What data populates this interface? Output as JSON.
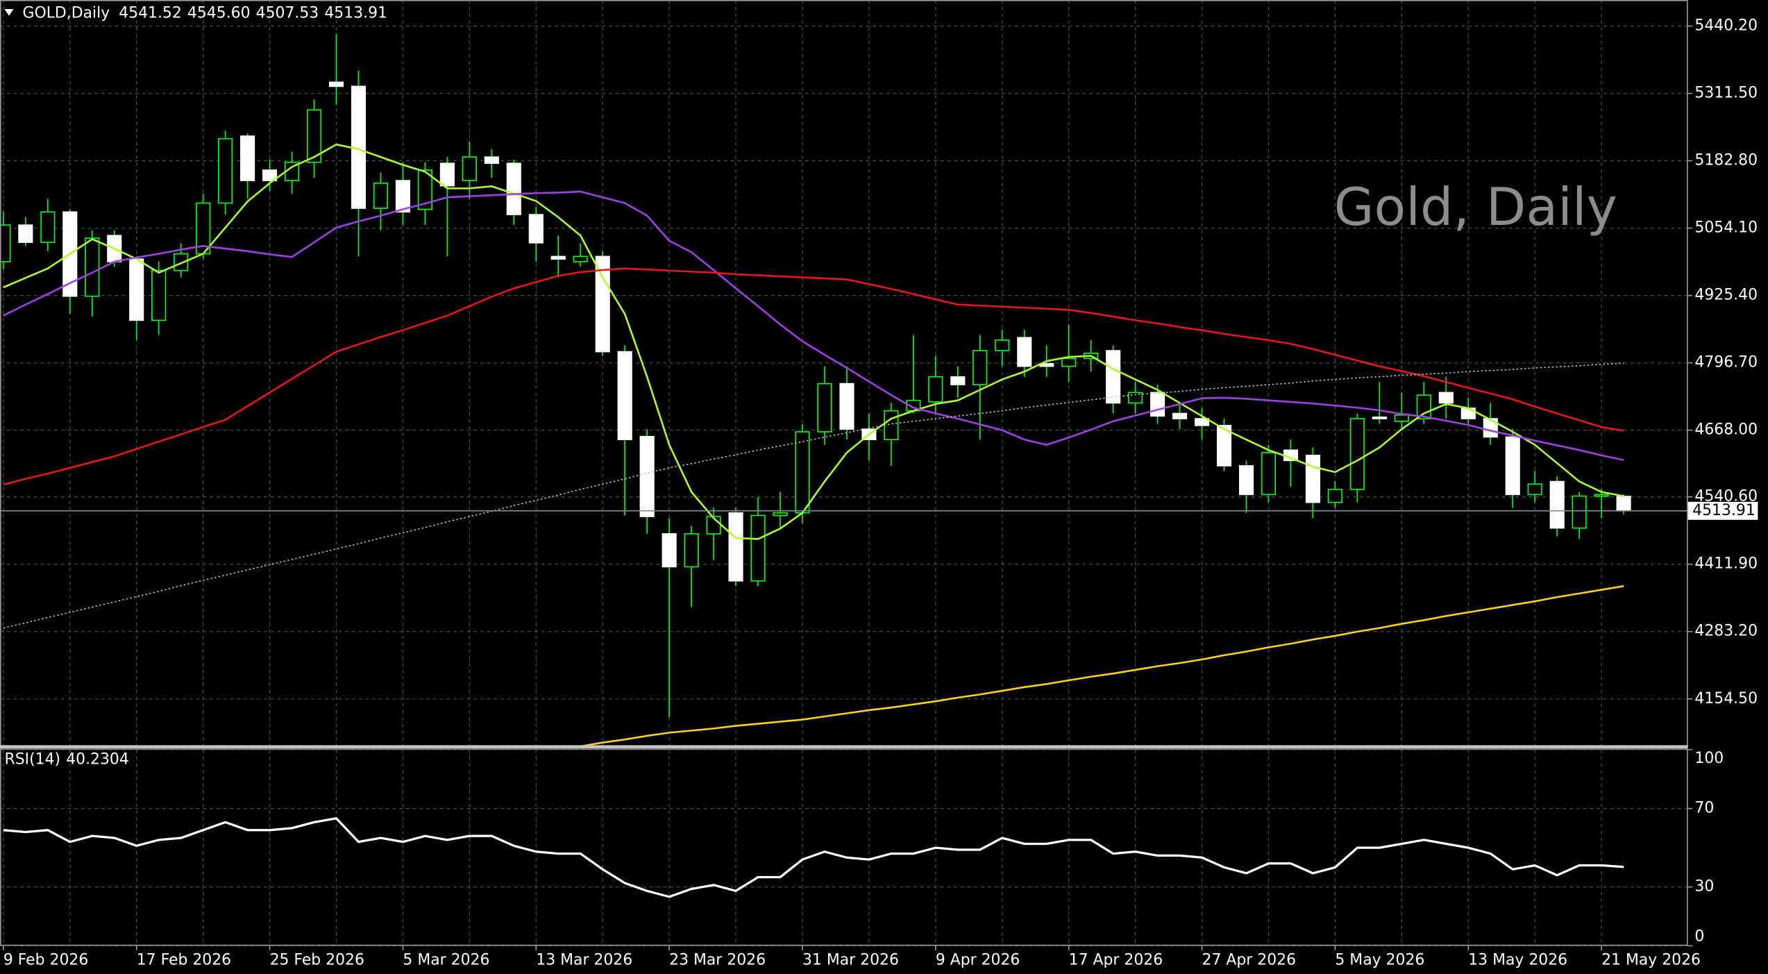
{
  "chart_data": [
    {
      "type": "candlestick",
      "title": "Gold, Daily",
      "header": {
        "symbol": "GOLD,Daily",
        "ohlc": [
          "4541.52",
          "4545.60",
          "4507.53",
          "4513.91"
        ]
      },
      "categories": [
        "9 Feb 2026",
        null,
        null,
        null,
        null,
        null,
        "17 Feb 2026",
        null,
        null,
        null,
        null,
        null,
        "25 Feb 2026",
        null,
        null,
        null,
        null,
        null,
        "5 Mar 2026",
        null,
        null,
        null,
        null,
        null,
        "13 Mar 2026",
        null,
        null,
        null,
        null,
        null,
        "23 Mar 2026",
        null,
        null,
        null,
        null,
        null,
        "31 Mar 2026",
        null,
        null,
        null,
        null,
        null,
        "9 Apr 2026",
        null,
        null,
        null,
        null,
        null,
        "17 Apr 2026",
        null,
        null,
        null,
        null,
        null,
        "27 Apr 2026",
        null,
        null,
        null,
        null,
        null,
        "5 May 2026",
        null,
        null,
        null,
        null,
        null,
        "13 May 2026",
        null,
        null,
        null,
        null,
        null,
        "21 May 2026",
        null
      ],
      "open": [
        4990,
        5060,
        5027,
        5085,
        4924,
        5040,
        4995,
        4878,
        4973,
        5005,
        5102,
        5230,
        5165,
        5145,
        5180,
        5333,
        5325,
        5092,
        5145,
        5090,
        5178,
        5145,
        5190,
        5178,
        5080,
        5000,
        4990,
        5000,
        4818,
        4656,
        4470,
        4407,
        4470,
        4510,
        4380,
        4505,
        4510,
        4665,
        4757,
        4670,
        4650,
        4705,
        4722,
        4770,
        4755,
        4820,
        4845,
        4795,
        4790,
        4805,
        4820,
        4720,
        4740,
        4700,
        4690,
        4677,
        4600,
        4545,
        4630,
        4620,
        4530,
        4555,
        4693,
        4685,
        4690,
        4740,
        4710,
        4690,
        4655,
        4545,
        4570,
        4481,
        4542,
        4541.52
      ],
      "high": [
        5085,
        5075,
        5110,
        5090,
        5050,
        5050,
        5000,
        4990,
        5025,
        5120,
        5240,
        5235,
        5185,
        5200,
        5300,
        5425,
        5355,
        5160,
        5180,
        5180,
        5190,
        5220,
        5205,
        5185,
        5095,
        5040,
        5025,
        5010,
        4830,
        4670,
        4500,
        4485,
        4520,
        4520,
        4540,
        4550,
        4680,
        4790,
        4790,
        4700,
        4720,
        4850,
        4810,
        4790,
        4850,
        4860,
        4860,
        4830,
        4870,
        4840,
        4830,
        4760,
        4755,
        4720,
        4710,
        4690,
        4610,
        4640,
        4650,
        4635,
        4570,
        4700,
        4760,
        4740,
        4760,
        4770,
        4730,
        4720,
        4670,
        4590,
        4580,
        4550,
        4555,
        4545.6
      ],
      "low": [
        4975,
        5020,
        5010,
        4890,
        4885,
        4980,
        4840,
        4850,
        4960,
        4995,
        5080,
        5110,
        5125,
        5120,
        5150,
        5290,
        5000,
        5050,
        5060,
        5060,
        5000,
        5110,
        5150,
        5060,
        4990,
        4960,
        4980,
        4810,
        4505,
        4470,
        4120,
        4330,
        4420,
        4370,
        4370,
        4480,
        4490,
        4640,
        4650,
        4610,
        4600,
        4700,
        4700,
        4730,
        4650,
        4790,
        4770,
        4770,
        4760,
        4780,
        4700,
        4700,
        4680,
        4670,
        4650,
        4590,
        4510,
        4530,
        4560,
        4500,
        4520,
        4530,
        4680,
        4670,
        4680,
        4690,
        4680,
        4640,
        4520,
        4530,
        4465,
        4460,
        4500,
        4507.53
      ],
      "close": [
        5060,
        5027,
        5085,
        4924,
        5035,
        4990,
        4878,
        4973,
        5005,
        5102,
        5225,
        5145,
        5145,
        5180,
        5280,
        5325,
        5092,
        5140,
        5085,
        5165,
        5135,
        5190,
        5178,
        5080,
        5026,
        4995,
        5000,
        4818,
        4650,
        4503,
        4407,
        4470,
        4503,
        4380,
        4505,
        4510,
        4665,
        4757,
        4670,
        4650,
        4705,
        4725,
        4770,
        4755,
        4820,
        4840,
        4790,
        4790,
        4805,
        4815,
        4720,
        4740,
        4695,
        4690,
        4677,
        4600,
        4545,
        4625,
        4610,
        4530,
        4555,
        4690,
        4690,
        4697,
        4735,
        4720,
        4690,
        4655,
        4545,
        4565,
        4481,
        4542,
        4545,
        4513.91
      ],
      "colors": {
        "up": "#000000",
        "down": "#ffffff",
        "wick": "#00ff00"
      },
      "series": [
        {
          "color": "#adff2f",
          "values": [
            4941,
            4959,
            4977,
            5005,
            5033,
            5015,
            4995,
            4969,
            4987,
            5005,
            5055,
            5105,
            5140,
            5171,
            5190,
            5214,
            5205,
            5190,
            5175,
            5162,
            5130,
            5130,
            5134,
            5120,
            5106,
            5075,
            5040,
            4960,
            4890,
            4770,
            4640,
            4550,
            4500,
            4462,
            4460,
            4480,
            4510,
            4570,
            4625,
            4660,
            4690,
            4705,
            4718,
            4725,
            4745,
            4765,
            4780,
            4800,
            4808,
            4810,
            4785,
            4765,
            4745,
            4720,
            4695,
            4670,
            4650,
            4630,
            4615,
            4598,
            4588,
            4610,
            4635,
            4670,
            4700,
            4718,
            4710,
            4688,
            4665,
            4640,
            4605,
            4570,
            4550,
            4542
          ]
        },
        {
          "color": "#a040e8",
          "values": [
            4887,
            4908,
            4928,
            4949,
            4969,
            4990,
            4998,
            5005,
            5013,
            5020,
            5015,
            5010,
            5004,
            4999,
            5027,
            5055,
            5067,
            5078,
            5090,
            5101,
            5113,
            5115,
            5117,
            5119,
            5121,
            5122,
            5124,
            5113,
            5102,
            5078,
            5030,
            5008,
            4974,
            4939,
            4905,
            4870,
            4838,
            4812,
            4787,
            4761,
            4735,
            4711,
            4700,
            4690,
            4679,
            4668,
            4650,
            4640,
            4654,
            4669,
            4685,
            4696,
            4707,
            4718,
            4729,
            4730,
            4728,
            4725,
            4722,
            4719,
            4715,
            4711,
            4706,
            4699,
            4694,
            4686,
            4678,
            4667,
            4658,
            4648,
            4639,
            4630,
            4620,
            4611
          ]
        },
        {
          "color": "#e81818",
          "values": [
            4564,
            4575,
            4585,
            4596,
            4607,
            4618,
            4632,
            4646,
            4660,
            4674,
            4688,
            4714,
            4740,
            4766,
            4792,
            4818,
            4832,
            4846,
            4859,
            4873,
            4887,
            4905,
            4923,
            4939,
            4951,
            4963,
            4970,
            4974,
            4977,
            4975,
            4973,
            4971,
            4969,
            4966,
            4964,
            4962,
            4960,
            4958,
            4956,
            4947,
            4938,
            4928,
            4918,
            4908,
            4906,
            4904,
            4902,
            4900,
            4898,
            4892,
            4885,
            4878,
            4872,
            4865,
            4859,
            4852,
            4846,
            4840,
            4833,
            4823,
            4812,
            4801,
            4790,
            4781,
            4771,
            4760,
            4749,
            4738,
            4727,
            4713,
            4700,
            4687,
            4674,
            4667
          ]
        },
        {
          "color": "#c0c0c0",
          "style": "dotted",
          "values": [
            4290,
            4300,
            4310,
            4320,
            4330,
            4340,
            4350,
            4360,
            4371,
            4381,
            4391,
            4401,
            4411,
            4421,
            4431,
            4441,
            4451,
            4462,
            4472,
            4482,
            4493,
            4503,
            4513,
            4524,
            4534,
            4544,
            4555,
            4565,
            4575,
            4586,
            4596,
            4604,
            4613,
            4621,
            4630,
            4638,
            4646,
            4655,
            4663,
            4672,
            4680,
            4685,
            4690,
            4695,
            4700,
            4705,
            4711,
            4716,
            4721,
            4726,
            4731,
            4736,
            4739,
            4742,
            4746,
            4749,
            4752,
            4755,
            4758,
            4762,
            4765,
            4768,
            4770,
            4773,
            4775,
            4777,
            4780,
            4782,
            4784,
            4787,
            4789,
            4791,
            4794,
            4796
          ]
        },
        {
          "color": "#ffd21a",
          "values": [
            null,
            null,
            null,
            null,
            null,
            null,
            null,
            null,
            null,
            null,
            null,
            null,
            null,
            null,
            null,
            null,
            null,
            null,
            null,
            null,
            null,
            null,
            null,
            null,
            null,
            null,
            4064,
            4071,
            4077,
            4084,
            4090,
            4094,
            4098,
            4103,
            4107,
            4111,
            4115,
            4121,
            4127,
            4133,
            4138,
            4144,
            4150,
            4157,
            4163,
            4170,
            4177,
            4183,
            4190,
            4197,
            4203,
            4210,
            4217,
            4223,
            4230,
            4238,
            4245,
            4253,
            4260,
            4268,
            4275,
            4283,
            4290,
            4298,
            4305,
            4313,
            4320,
            4327,
            4334,
            4341,
            4349,
            4356,
            4363,
            4370
          ]
        }
      ],
      "ylim": [
        4064,
        5490
      ],
      "yticks": [
        {
          "value": 4154.5,
          "label": "4154.50"
        },
        {
          "value": 4283.2,
          "label": "4283.20"
        },
        {
          "value": 4411.9,
          "label": "4411.90"
        },
        {
          "value": 4540.6,
          "label": "4540.60"
        },
        {
          "value": 4668,
          "label": "4668.00"
        },
        {
          "value": 4796.7,
          "label": "4796.70"
        },
        {
          "value": 4925.4,
          "label": "4925.40"
        },
        {
          "value": 5054.1,
          "label": "5054.10"
        },
        {
          "value": 5182.8,
          "label": "5182.80"
        },
        {
          "value": 5311.5,
          "label": "5311.50"
        },
        {
          "value": 5440.2,
          "label": "5440.20"
        }
      ],
      "grid": true
    },
    {
      "type": "line",
      "title": "RSI(14)",
      "series": [
        {
          "color": "#ffffff",
          "values": [
            59,
            58,
            59,
            53,
            56,
            55,
            51,
            54,
            55,
            59,
            63,
            59,
            59,
            60,
            63,
            65,
            53,
            55,
            53,
            56,
            54,
            56,
            56,
            51,
            48,
            47,
            47,
            39,
            32,
            28,
            25,
            29,
            31,
            28,
            35,
            35,
            44,
            48,
            45,
            44,
            47,
            47,
            50,
            49,
            49,
            55,
            52,
            52,
            54,
            54,
            47,
            48,
            46,
            46,
            45,
            40,
            37,
            42,
            42,
            37,
            40,
            50,
            50,
            52,
            54,
            52,
            50,
            47,
            39,
            41,
            36,
            41,
            41,
            40.2304
          ]
        }
      ],
      "ylim": [
        0,
        100
      ],
      "yticks": [
        0,
        30,
        70,
        100
      ],
      "grid": true
    }
  ]
}
